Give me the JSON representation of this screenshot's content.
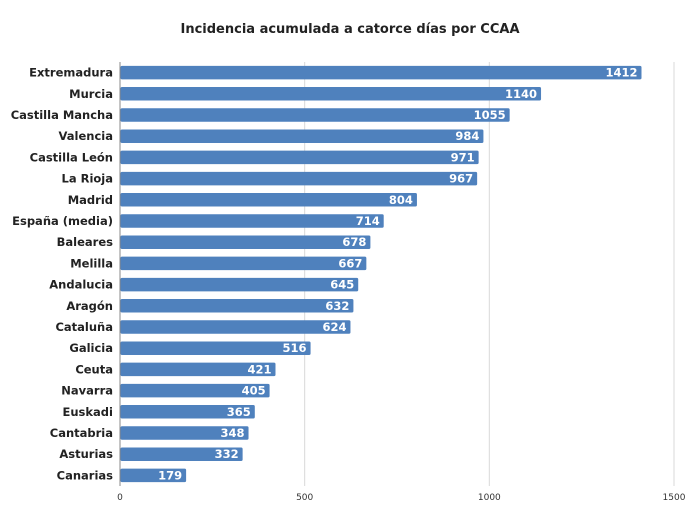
{
  "chart_data": {
    "type": "bar",
    "orientation": "horizontal",
    "title": "Incidencia acumulada a catorce días por CCAA",
    "xlabel": "",
    "ylabel": "",
    "xlim": [
      0,
      1500
    ],
    "x_ticks": [
      0,
      500,
      1000,
      1500
    ],
    "grid": true,
    "legend": "none",
    "bar_color": "#4f81bd",
    "categories": [
      "Extremadura",
      "Murcia",
      "Castilla Mancha",
      "Valencia",
      "Castilla León",
      "La Rioja",
      "Madrid",
      "España (media)",
      "Baleares",
      "Melilla",
      "Andalucia",
      "Aragón",
      "Cataluña",
      "Galicia",
      "Ceuta",
      "Navarra",
      "Euskadi",
      "Cantabria",
      "Asturias",
      "Canarias"
    ],
    "values": [
      1412,
      1140,
      1055,
      984,
      971,
      967,
      804,
      714,
      678,
      667,
      645,
      632,
      624,
      516,
      421,
      405,
      365,
      348,
      332,
      179
    ]
  }
}
